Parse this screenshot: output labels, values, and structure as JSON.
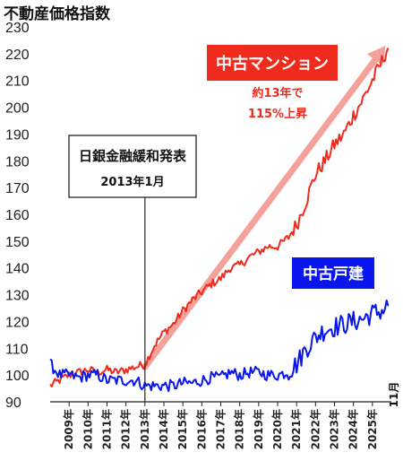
{
  "chart_data": {
    "type": "line",
    "title": "不動産価格指数",
    "ylim": [
      90,
      230
    ],
    "yticks": [
      90,
      100,
      110,
      120,
      130,
      140,
      150,
      160,
      170,
      180,
      190,
      200,
      210,
      220,
      230
    ],
    "xticks": [
      "2009年",
      "2010年",
      "2011年",
      "2012年",
      "2013年",
      "2014年",
      "2015年",
      "2016年",
      "2017年",
      "2018年",
      "2019年",
      "2020年",
      "2021年",
      "2022年",
      "2023年",
      "2024年",
      "2025年"
    ],
    "end_label": "11月",
    "grid": false,
    "series": [
      {
        "name": "中古マンション",
        "color": "#ee2b1c",
        "points": [
          [
            2008.0,
            96
          ],
          [
            2008.5,
            98
          ],
          [
            2009.0,
            100
          ],
          [
            2009.5,
            101
          ],
          [
            2010.0,
            102
          ],
          [
            2010.5,
            101
          ],
          [
            2011.0,
            102
          ],
          [
            2011.5,
            101
          ],
          [
            2012.0,
            102
          ],
          [
            2012.5,
            103
          ],
          [
            2013.0,
            104
          ],
          [
            2013.5,
            111
          ],
          [
            2014.0,
            116
          ],
          [
            2014.5,
            119
          ],
          [
            2015.0,
            124
          ],
          [
            2015.5,
            128
          ],
          [
            2016.0,
            131
          ],
          [
            2016.5,
            134
          ],
          [
            2017.0,
            136
          ],
          [
            2017.5,
            140
          ],
          [
            2018.0,
            141
          ],
          [
            2018.5,
            144
          ],
          [
            2019.0,
            146
          ],
          [
            2019.5,
            148
          ],
          [
            2020.0,
            148
          ],
          [
            2020.5,
            151
          ],
          [
            2021.0,
            156
          ],
          [
            2021.5,
            165
          ],
          [
            2022.0,
            175
          ],
          [
            2022.5,
            180
          ],
          [
            2023.0,
            186
          ],
          [
            2023.5,
            190
          ],
          [
            2024.0,
            197
          ],
          [
            2024.5,
            203
          ],
          [
            2025.0,
            210
          ],
          [
            2025.5,
            217
          ],
          [
            2025.85,
            223
          ]
        ]
      },
      {
        "name": "中古戸建",
        "color": "#0a16ee",
        "points": [
          [
            2008.0,
            104
          ],
          [
            2008.5,
            100
          ],
          [
            2009.0,
            100
          ],
          [
            2009.5,
            99
          ],
          [
            2010.0,
            100
          ],
          [
            2010.5,
            100
          ],
          [
            2011.0,
            98
          ],
          [
            2011.5,
            98
          ],
          [
            2012.0,
            98
          ],
          [
            2012.5,
            98
          ],
          [
            2013.0,
            96
          ],
          [
            2013.5,
            96
          ],
          [
            2014.0,
            96
          ],
          [
            2014.5,
            96
          ],
          [
            2015.0,
            97
          ],
          [
            2015.5,
            97
          ],
          [
            2016.0,
            98
          ],
          [
            2016.5,
            99
          ],
          [
            2017.0,
            99
          ],
          [
            2017.5,
            101
          ],
          [
            2018.0,
            100
          ],
          [
            2018.5,
            101
          ],
          [
            2019.0,
            101
          ],
          [
            2019.5,
            100
          ],
          [
            2020.0,
            100
          ],
          [
            2020.5,
            101
          ],
          [
            2021.0,
            104
          ],
          [
            2021.5,
            110
          ],
          [
            2022.0,
            114
          ],
          [
            2022.5,
            117
          ],
          [
            2023.0,
            118
          ],
          [
            2023.5,
            119
          ],
          [
            2024.0,
            120
          ],
          [
            2024.5,
            121
          ],
          [
            2025.0,
            123
          ],
          [
            2025.5,
            124
          ],
          [
            2025.85,
            126
          ]
        ]
      }
    ],
    "annotations": {
      "policy_box": {
        "title": "日銀金融緩和発表",
        "date": "2013年1月"
      },
      "mansion_label": "中古マンション",
      "mansion_note_line1": "約13年で",
      "mansion_note_line2": "115%上昇",
      "house_label": "中古戸建"
    }
  }
}
